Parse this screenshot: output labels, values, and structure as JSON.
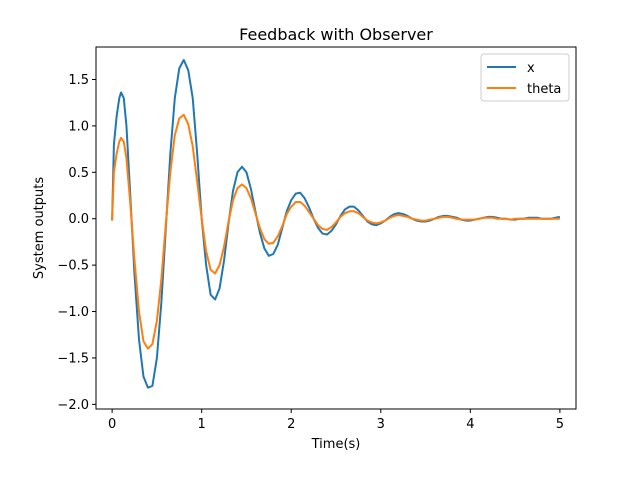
{
  "chart_data": {
    "type": "line",
    "title": "Feedback with Observer",
    "xlabel": "Time(s)",
    "ylabel": "System outputs",
    "xlim": [
      -0.18,
      5.18
    ],
    "ylim": [
      -2.05,
      1.85
    ],
    "xticks": [
      0,
      1,
      2,
      3,
      4,
      5
    ],
    "yticks": [
      -2.0,
      -1.5,
      -1.0,
      -0.5,
      0.0,
      0.5,
      1.0,
      1.5
    ],
    "xtick_labels": [
      "0",
      "1",
      "2",
      "3",
      "4",
      "5"
    ],
    "ytick_labels": [
      "−2.0",
      "−1.5",
      "−1.0",
      "−0.5",
      "0.0",
      "0.5",
      "1.0",
      "1.5"
    ],
    "grid": false,
    "legend_position": "top-right",
    "series": [
      {
        "name": "x",
        "color": "#1f77b4",
        "x": [
          0,
          0.02,
          0.05,
          0.08,
          0.1,
          0.13,
          0.16,
          0.2,
          0.25,
          0.3,
          0.35,
          0.4,
          0.45,
          0.5,
          0.55,
          0.6,
          0.65,
          0.7,
          0.75,
          0.8,
          0.85,
          0.9,
          0.95,
          1.0,
          1.05,
          1.1,
          1.15,
          1.2,
          1.25,
          1.3,
          1.35,
          1.4,
          1.45,
          1.5,
          1.55,
          1.6,
          1.65,
          1.7,
          1.75,
          1.8,
          1.85,
          1.9,
          1.95,
          2.0,
          2.05,
          2.1,
          2.15,
          2.2,
          2.25,
          2.3,
          2.35,
          2.4,
          2.45,
          2.5,
          2.55,
          2.6,
          2.65,
          2.7,
          2.75,
          2.8,
          2.85,
          2.9,
          2.95,
          3.0,
          3.05,
          3.1,
          3.15,
          3.2,
          3.25,
          3.3,
          3.35,
          3.4,
          3.45,
          3.5,
          3.55,
          3.6,
          3.65,
          3.7,
          3.75,
          3.8,
          3.85,
          3.9,
          3.95,
          4.0,
          4.05,
          4.1,
          4.15,
          4.2,
          4.25,
          4.3,
          4.35,
          4.4,
          4.45,
          4.5,
          4.55,
          4.6,
          4.65,
          4.7,
          4.75,
          4.8,
          4.85,
          4.9,
          4.95,
          5.0
        ],
        "y": [
          -0.02,
          0.8,
          1.1,
          1.3,
          1.36,
          1.3,
          1.0,
          0.3,
          -0.6,
          -1.3,
          -1.7,
          -1.82,
          -1.8,
          -1.5,
          -0.9,
          -0.1,
          0.7,
          1.3,
          1.62,
          1.71,
          1.6,
          1.3,
          0.7,
          0.0,
          -0.5,
          -0.82,
          -0.87,
          -0.75,
          -0.45,
          -0.05,
          0.3,
          0.5,
          0.56,
          0.5,
          0.32,
          0.08,
          -0.15,
          -0.32,
          -0.4,
          -0.38,
          -0.28,
          -0.1,
          0.08,
          0.2,
          0.27,
          0.28,
          0.22,
          0.12,
          0.0,
          -0.1,
          -0.16,
          -0.17,
          -0.13,
          -0.06,
          0.03,
          0.1,
          0.13,
          0.13,
          0.09,
          0.03,
          -0.03,
          -0.06,
          -0.07,
          -0.05,
          -0.02,
          0.02,
          0.05,
          0.06,
          0.05,
          0.03,
          0.0,
          -0.02,
          -0.03,
          -0.03,
          -0.02,
          0.0,
          0.02,
          0.03,
          0.03,
          0.02,
          0.01,
          -0.01,
          -0.02,
          -0.02,
          -0.01,
          0.0,
          0.01,
          0.02,
          0.02,
          0.01,
          0.0,
          0.0,
          -0.01,
          -0.01,
          0.0,
          0.0,
          0.01,
          0.01,
          0.01,
          0.0,
          0.0,
          0.0,
          0.01,
          0.02
        ]
      },
      {
        "name": "theta",
        "color": "#ff7f0e",
        "x": [
          0,
          0.02,
          0.05,
          0.08,
          0.1,
          0.13,
          0.16,
          0.2,
          0.25,
          0.3,
          0.35,
          0.4,
          0.45,
          0.5,
          0.55,
          0.6,
          0.65,
          0.7,
          0.75,
          0.8,
          0.85,
          0.9,
          0.95,
          1.0,
          1.05,
          1.1,
          1.15,
          1.2,
          1.25,
          1.3,
          1.35,
          1.4,
          1.45,
          1.5,
          1.55,
          1.6,
          1.65,
          1.7,
          1.75,
          1.8,
          1.85,
          1.9,
          1.95,
          2.0,
          2.05,
          2.1,
          2.15,
          2.2,
          2.25,
          2.3,
          2.35,
          2.4,
          2.45,
          2.5,
          2.55,
          2.6,
          2.65,
          2.7,
          2.75,
          2.8,
          2.85,
          2.9,
          2.95,
          3.0,
          3.05,
          3.1,
          3.15,
          3.2,
          3.25,
          3.3,
          3.35,
          3.4,
          3.45,
          3.5,
          3.55,
          3.6,
          3.65,
          3.7,
          3.75,
          3.8,
          3.85,
          3.9,
          3.95,
          4.0,
          4.05,
          4.1,
          4.15,
          4.2,
          4.25,
          4.3,
          4.35,
          4.4,
          4.45,
          4.5,
          4.55,
          4.6,
          4.65,
          4.7,
          4.75,
          4.8,
          4.85,
          4.9,
          4.95,
          5.0
        ],
        "y": [
          -0.02,
          0.5,
          0.7,
          0.83,
          0.87,
          0.83,
          0.65,
          0.2,
          -0.45,
          -1.0,
          -1.32,
          -1.4,
          -1.35,
          -1.1,
          -0.65,
          -0.05,
          0.5,
          0.9,
          1.08,
          1.12,
          1.02,
          0.78,
          0.4,
          0.0,
          -0.35,
          -0.55,
          -0.59,
          -0.5,
          -0.3,
          -0.03,
          0.2,
          0.33,
          0.37,
          0.33,
          0.22,
          0.06,
          -0.1,
          -0.22,
          -0.27,
          -0.26,
          -0.19,
          -0.08,
          0.05,
          0.13,
          0.18,
          0.18,
          0.14,
          0.07,
          0.0,
          -0.07,
          -0.11,
          -0.12,
          -0.09,
          -0.04,
          0.02,
          0.06,
          0.08,
          0.08,
          0.06,
          0.02,
          -0.02,
          -0.04,
          -0.05,
          -0.04,
          -0.02,
          0.01,
          0.03,
          0.04,
          0.03,
          0.02,
          0.0,
          -0.01,
          -0.02,
          -0.02,
          -0.01,
          0.0,
          0.01,
          0.02,
          0.02,
          0.01,
          0.0,
          -0.01,
          -0.01,
          -0.01,
          -0.01,
          0.0,
          0.01,
          0.01,
          0.01,
          0.0,
          0.0,
          0.0,
          -0.01,
          0.0,
          0.0,
          0.0,
          0.0,
          0.0,
          0.0,
          0.0,
          0.0,
          0.0,
          0.0,
          0.0
        ]
      }
    ]
  }
}
